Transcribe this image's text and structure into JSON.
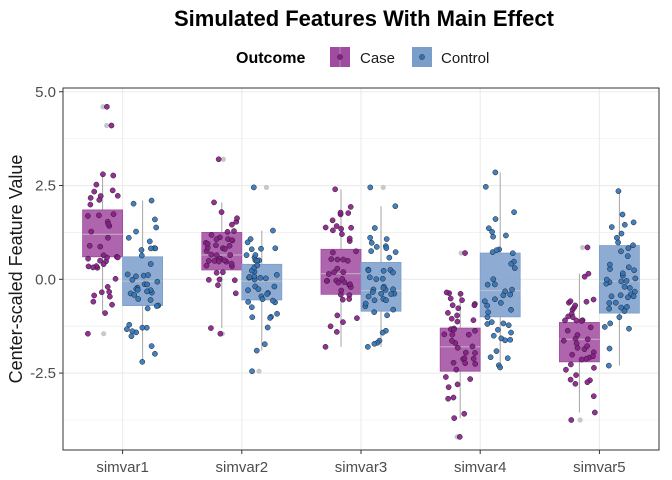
{
  "chart_data": {
    "type": "box",
    "title": "Simulated Features With Main Effect",
    "ylabel": "Center-scaled Feature Value",
    "xlabel": "",
    "categories": [
      "simvar1",
      "simvar2",
      "simvar3",
      "simvar4",
      "simvar5"
    ],
    "ylim": [
      -4.55,
      5.1
    ],
    "yticks": [
      -2.5,
      0.0,
      2.5,
      5.0
    ],
    "ytick_labels": [
      "-2.5",
      "0.0",
      "2.5",
      "5.0"
    ],
    "grid": true,
    "legend": {
      "title": "Outcome",
      "position": "top",
      "entries": [
        "Case",
        "Control"
      ]
    },
    "series": [
      {
        "name": "Case",
        "box_color": "#a04aa0",
        "point_color": "#8b1a8b",
        "boxes": [
          {
            "q1": 0.6,
            "median": 1.2,
            "q3": 1.85,
            "whisker_low": -0.9,
            "whisker_high": 2.8,
            "outliers": [
              4.6,
              4.1,
              -1.45
            ]
          },
          {
            "q1": 0.25,
            "median": 0.65,
            "q3": 1.25,
            "whisker_low": -1.3,
            "whisker_high": 2.05,
            "outliers": [
              3.2,
              -1.45
            ]
          },
          {
            "q1": -0.4,
            "median": 0.15,
            "q3": 0.8,
            "whisker_low": -1.8,
            "whisker_high": 2.4,
            "outliers": []
          },
          {
            "q1": -2.45,
            "median": -1.8,
            "q3": -1.3,
            "whisker_low": -3.7,
            "whisker_high": -0.35,
            "outliers": [
              0.7,
              -4.2
            ]
          },
          {
            "q1": -2.2,
            "median": -1.6,
            "q3": -1.15,
            "whisker_low": -3.55,
            "whisker_high": 0.15,
            "outliers": [
              0.85,
              -3.75
            ]
          }
        ]
      },
      {
        "name": "Control",
        "box_color": "#7a9ecb",
        "point_color": "#2f72b8",
        "boxes": [
          {
            "q1": -0.7,
            "median": -0.05,
            "q3": 0.6,
            "whisker_low": -2.2,
            "whisker_high": 2.1,
            "outliers": []
          },
          {
            "q1": -0.55,
            "median": -0.05,
            "q3": 0.4,
            "whisker_low": -1.9,
            "whisker_high": 1.3,
            "outliers": [
              2.45,
              -2.45
            ]
          },
          {
            "q1": -0.85,
            "median": -0.3,
            "q3": 0.45,
            "whisker_low": -1.8,
            "whisker_high": 1.95,
            "outliers": [
              2.45
            ]
          },
          {
            "q1": -1.0,
            "median": -0.3,
            "q3": 0.7,
            "whisker_low": -2.35,
            "whisker_high": 2.85,
            "outliers": []
          },
          {
            "q1": -0.9,
            "median": -0.05,
            "q3": 0.9,
            "whisker_low": -2.3,
            "whisker_high": 2.35,
            "outliers": []
          }
        ]
      }
    ]
  }
}
